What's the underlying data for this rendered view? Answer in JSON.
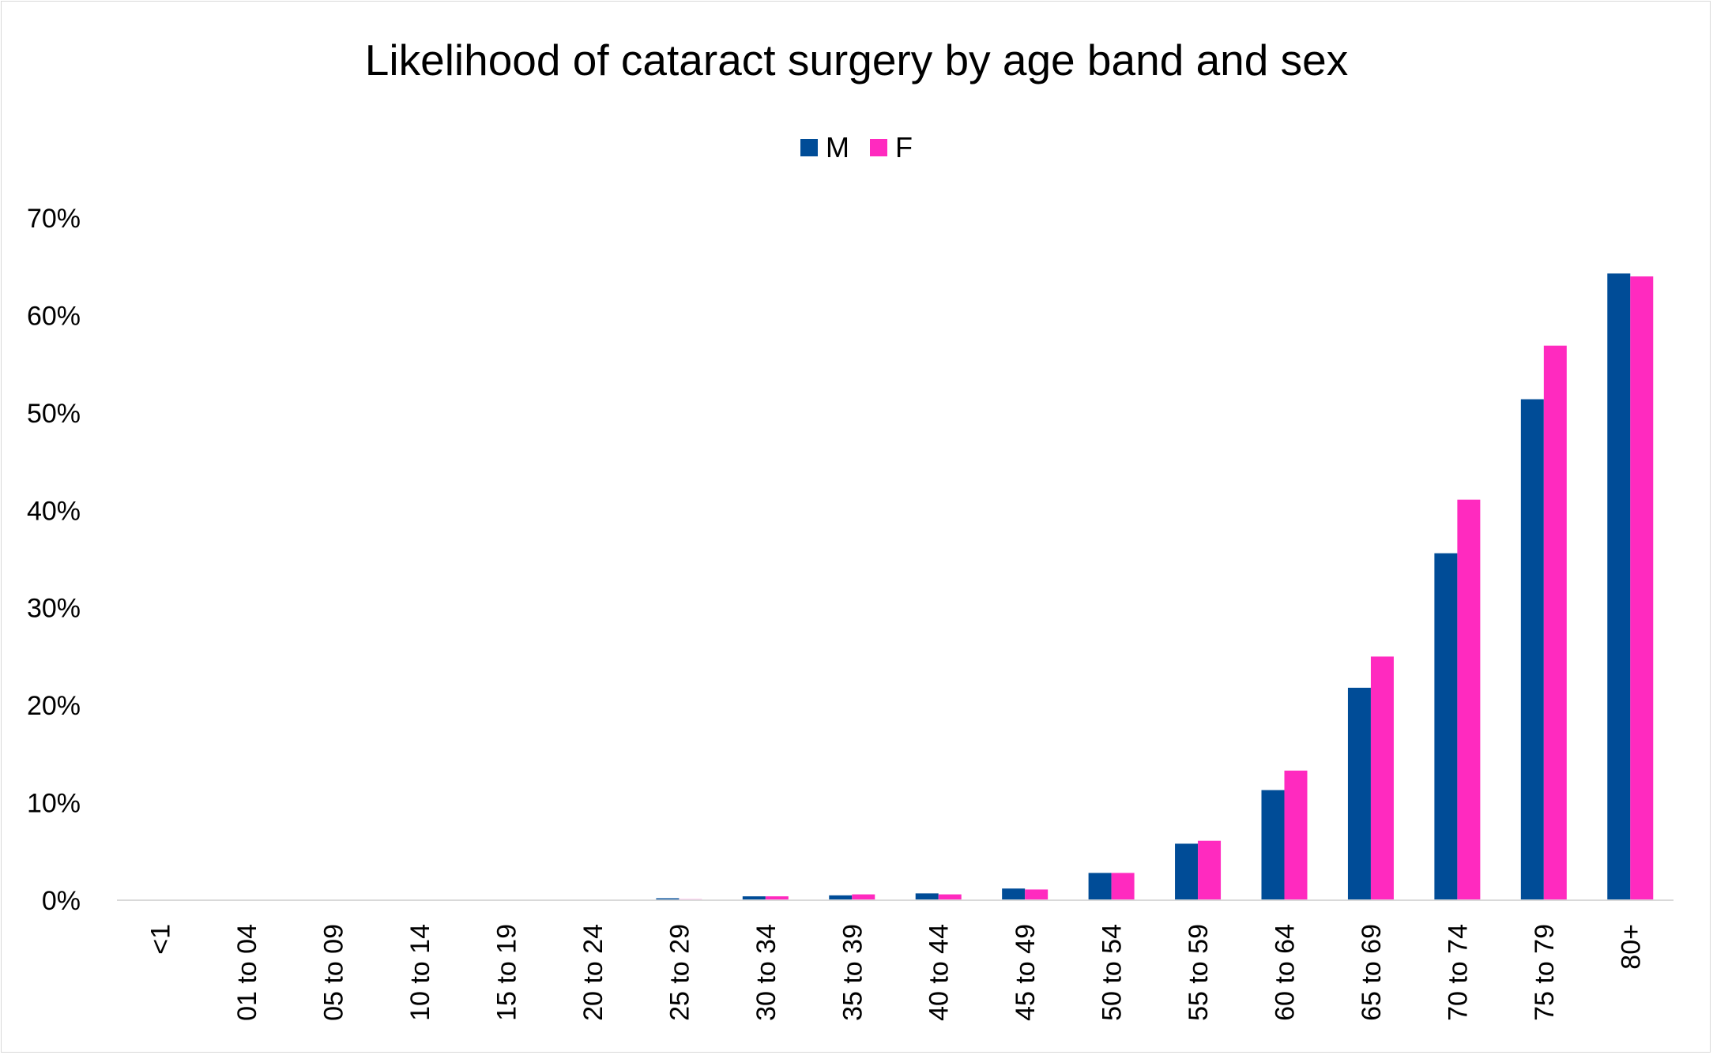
{
  "chart_data": {
    "type": "bar",
    "title": "Likelihood of cataract surgery by age band and sex",
    "xlabel": "",
    "ylabel": "",
    "categories": [
      "<1",
      "01 to 04",
      "05 to 09",
      "10 to 14",
      "15 to 19",
      "20 to 24",
      "25 to 29",
      "30 to 34",
      "35 to 39",
      "40 to 44",
      "45 to 49",
      "50 to 54",
      "55 to 59",
      "60 to 64",
      "65 to 69",
      "70 to 74",
      "75 to 79",
      "80+"
    ],
    "series": [
      {
        "name": "M",
        "color": "#004C97",
        "values": [
          0,
          0,
          0,
          0,
          0,
          0,
          0.2,
          0.4,
          0.5,
          0.7,
          1.2,
          2.8,
          5.8,
          11.3,
          21.8,
          35.6,
          51.4,
          64.3
        ]
      },
      {
        "name": "F",
        "color": "#FF2ABF",
        "values": [
          0,
          0,
          0,
          0,
          0,
          0,
          0.1,
          0.4,
          0.6,
          0.6,
          1.1,
          2.8,
          6.1,
          13.3,
          25.0,
          41.1,
          56.9,
          64.0
        ]
      }
    ],
    "yticks": [
      "0%",
      "10%",
      "20%",
      "30%",
      "40%",
      "50%",
      "60%",
      "70%"
    ],
    "ylim": [
      0,
      70
    ],
    "grid": false,
    "legend": "top-center"
  }
}
